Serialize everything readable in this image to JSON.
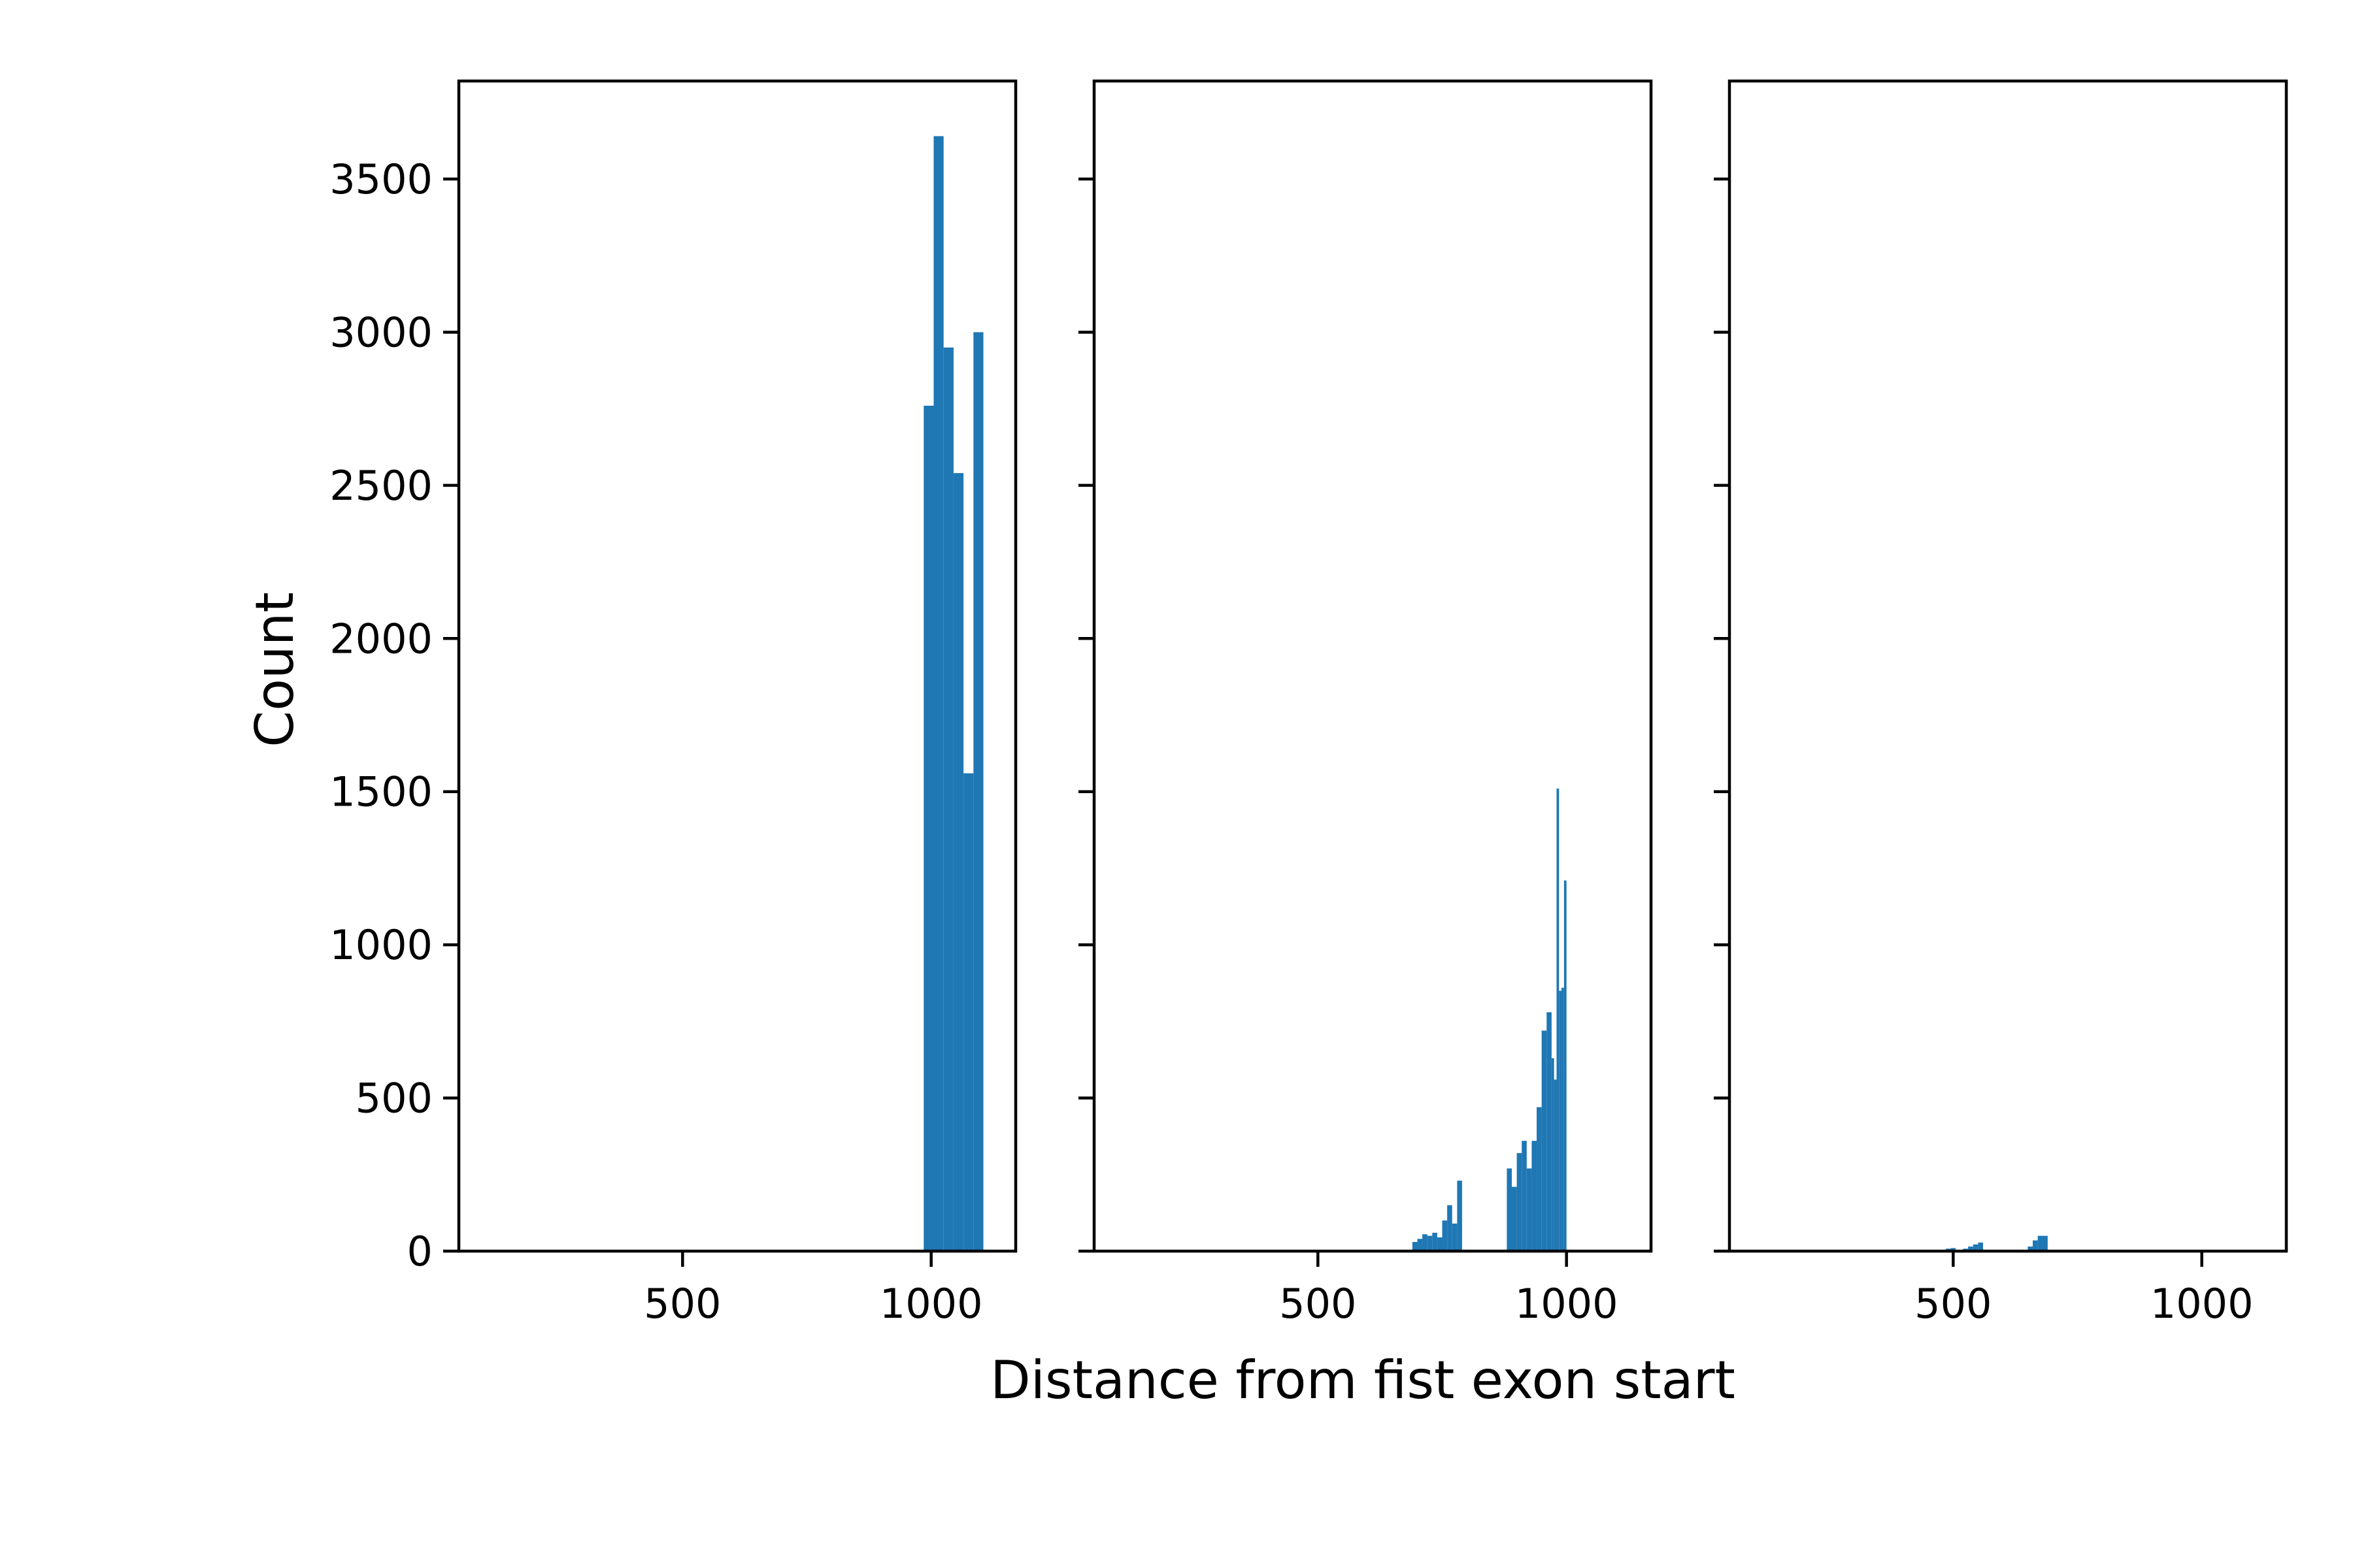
{
  "chart_data": {
    "type": "bar",
    "subtype": "histogram",
    "layout": "1x3 subplots, shared x and y axes",
    "xlabel": "Distance from fist exon start",
    "ylabel": "Count",
    "xlim": [
      50,
      1170
    ],
    "ylim": [
      0,
      3820
    ],
    "xticks": [
      500,
      1000
    ],
    "yticks": [
      0,
      500,
      1000,
      1500,
      2000,
      2500,
      3000,
      3500
    ],
    "color": "#1f77b4",
    "panels": [
      {
        "name": "",
        "bins": [
          {
            "x0": 985,
            "x1": 1005,
            "count": 2760
          },
          {
            "x0": 1005,
            "x1": 1025,
            "count": 3640
          },
          {
            "x0": 1025,
            "x1": 1045,
            "count": 2950
          },
          {
            "x0": 1045,
            "x1": 1065,
            "count": 2540
          },
          {
            "x0": 1065,
            "x1": 1085,
            "count": 1560
          },
          {
            "x0": 1085,
            "x1": 1105,
            "count": 3000
          }
        ]
      },
      {
        "name": "",
        "bins": [
          {
            "x0": 690,
            "x1": 700,
            "count": 30
          },
          {
            "x0": 700,
            "x1": 710,
            "count": 40
          },
          {
            "x0": 710,
            "x1": 720,
            "count": 55
          },
          {
            "x0": 720,
            "x1": 730,
            "count": 50
          },
          {
            "x0": 730,
            "x1": 740,
            "count": 60
          },
          {
            "x0": 740,
            "x1": 750,
            "count": 45
          },
          {
            "x0": 750,
            "x1": 760,
            "count": 100
          },
          {
            "x0": 760,
            "x1": 770,
            "count": 150
          },
          {
            "x0": 770,
            "x1": 780,
            "count": 90
          },
          {
            "x0": 780,
            "x1": 790,
            "count": 230
          },
          {
            "x0": 880,
            "x1": 890,
            "count": 270
          },
          {
            "x0": 890,
            "x1": 900,
            "count": 210
          },
          {
            "x0": 900,
            "x1": 910,
            "count": 320
          },
          {
            "x0": 910,
            "x1": 920,
            "count": 360
          },
          {
            "x0": 920,
            "x1": 930,
            "count": 270
          },
          {
            "x0": 930,
            "x1": 940,
            "count": 360
          },
          {
            "x0": 940,
            "x1": 950,
            "count": 470
          },
          {
            "x0": 950,
            "x1": 960,
            "count": 720
          },
          {
            "x0": 960,
            "x1": 970,
            "count": 780
          },
          {
            "x0": 970,
            "x1": 975,
            "count": 630
          },
          {
            "x0": 975,
            "x1": 980,
            "count": 560
          },
          {
            "x0": 980,
            "x1": 985,
            "count": 1510
          },
          {
            "x0": 985,
            "x1": 990,
            "count": 850
          },
          {
            "x0": 990,
            "x1": 995,
            "count": 860
          },
          {
            "x0": 995,
            "x1": 1000,
            "count": 1210
          }
        ]
      },
      {
        "name": "",
        "bins": [
          {
            "x0": 110,
            "x1": 130,
            "count": 4
          },
          {
            "x0": 485,
            "x1": 495,
            "count": 8
          },
          {
            "x0": 495,
            "x1": 505,
            "count": 10
          },
          {
            "x0": 520,
            "x1": 530,
            "count": 8
          },
          {
            "x0": 530,
            "x1": 540,
            "count": 15
          },
          {
            "x0": 540,
            "x1": 550,
            "count": 22
          },
          {
            "x0": 550,
            "x1": 560,
            "count": 28
          },
          {
            "x0": 650,
            "x1": 660,
            "count": 15
          },
          {
            "x0": 660,
            "x1": 670,
            "count": 35
          },
          {
            "x0": 670,
            "x1": 690,
            "count": 50
          }
        ]
      }
    ]
  }
}
